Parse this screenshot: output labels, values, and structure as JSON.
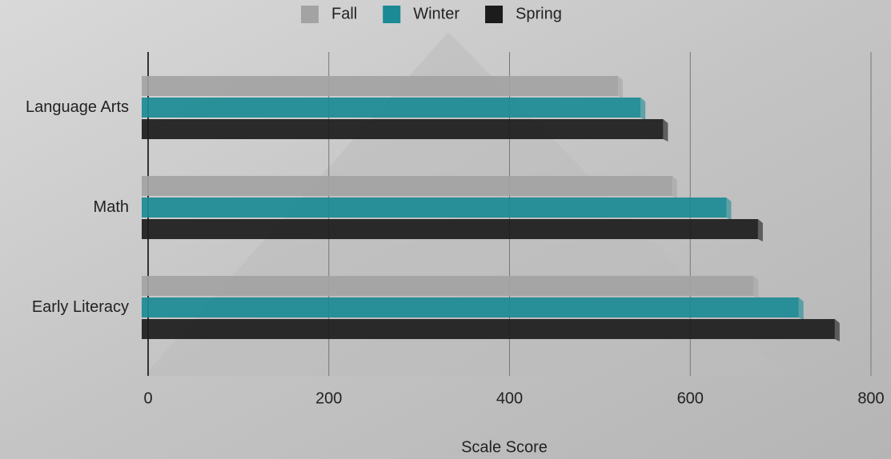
{
  "chart_data": {
    "type": "bar",
    "orientation": "horizontal",
    "categories": [
      "Language Arts",
      "Math",
      "Early Literacy"
    ],
    "series": [
      {
        "name": "Fall",
        "color": "#a3a3a3",
        "values": [
          520,
          580,
          670
        ]
      },
      {
        "name": "Winter",
        "color": "#1b8a94",
        "values": [
          545,
          640,
          720
        ]
      },
      {
        "name": "Spring",
        "color": "#1c1c1c",
        "values": [
          570,
          675,
          760
        ]
      }
    ],
    "xlabel": "Scale Score",
    "xlim": [
      0,
      800
    ],
    "xticks": [
      0,
      200,
      400,
      600,
      800
    ],
    "grid": true,
    "legend": "top"
  }
}
